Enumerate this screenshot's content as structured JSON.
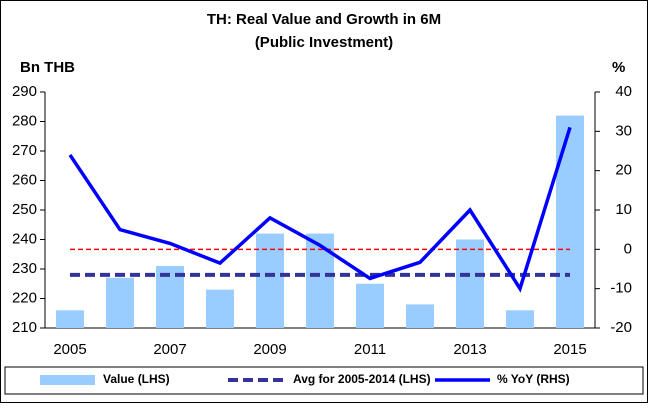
{
  "chart_data": {
    "type": "bar-line",
    "title": "TH: Real Value and Growth in 6M",
    "subtitle": "(Public Investment)",
    "ylabel": "Bn THB",
    "y2label": "%",
    "categories": [
      "2005",
      null,
      "2007",
      null,
      "2009",
      null,
      "2011",
      null,
      "2013",
      null,
      "2015"
    ],
    "series": [
      {
        "name": "Value (LHS)",
        "type": "bar",
        "color": "#99ccff",
        "values": [
          216,
          227,
          231,
          223,
          242,
          242,
          225,
          218,
          240,
          216,
          282
        ]
      },
      {
        "name": "Avg for 2005-2014 (LHS)",
        "type": "avg",
        "color": "#333399",
        "value": 228
      },
      {
        "name": "% YoY (RHS)",
        "type": "line",
        "axis": "y2",
        "color": "#0000ff",
        "values": [
          24,
          5,
          1.5,
          -3.5,
          8,
          1,
          -7.4,
          -3.3,
          10,
          -10,
          31
        ]
      }
    ],
    "reference_line": {
      "value": 0,
      "axis": "y2",
      "color": "#ff0000"
    },
    "ylim": [
      210,
      290
    ],
    "yticks": [
      210,
      220,
      230,
      240,
      250,
      260,
      270,
      280,
      290
    ],
    "y2lim": [
      -20,
      40
    ],
    "y2ticks": [
      -20,
      -10,
      0,
      10,
      20,
      30,
      40
    ]
  }
}
